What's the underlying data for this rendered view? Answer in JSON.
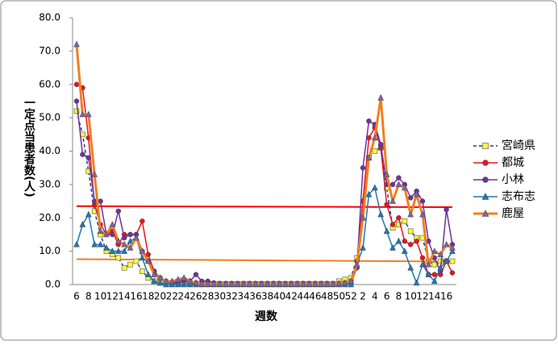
{
  "chart_data": {
    "type": "line",
    "x_label": "週数",
    "y_label": "一定点当患者数(人)",
    "categories": [
      "6",
      null,
      "8",
      null,
      "10",
      null,
      "12",
      null,
      "14",
      null,
      "16",
      null,
      "18",
      null,
      "20",
      null,
      "22",
      null,
      "24",
      null,
      "26",
      null,
      "28",
      null,
      "30",
      null,
      "32",
      null,
      "34",
      null,
      "36",
      null,
      "38",
      null,
      "40",
      null,
      "42",
      null,
      "44",
      null,
      "46",
      null,
      "48",
      null,
      "50",
      null,
      "52",
      null,
      "2",
      null,
      "4",
      null,
      "6",
      null,
      "8",
      null,
      "10",
      null,
      "12",
      null,
      "14",
      null,
      "16",
      null
    ],
    "series": [
      {
        "name": "宮崎県",
        "color": "#1f3f8f",
        "marker": "square",
        "marker_color": "#ffff33",
        "dash": true,
        "width": 1.5,
        "values": [
          52,
          45,
          34,
          22,
          15,
          10,
          9,
          8,
          5,
          6,
          7,
          4,
          2,
          1,
          0.5,
          0.3,
          0.2,
          0.2,
          0.2,
          0.2,
          0.2,
          0.2,
          0.2,
          0.2,
          0.2,
          0.2,
          0.2,
          0.2,
          0.2,
          0.2,
          0.2,
          0.2,
          0.2,
          0.2,
          0.2,
          0.2,
          0.2,
          0.2,
          0.2,
          0.2,
          0.2,
          0.2,
          0.2,
          0.2,
          1,
          1.5,
          2,
          8,
          24,
          38,
          40,
          41,
          29,
          17,
          18,
          19,
          16,
          14,
          14,
          7,
          6,
          7,
          7,
          7
        ]
      },
      {
        "name": "都城",
        "color": "#e8141c",
        "marker": "circle",
        "marker_color": "#e8141c",
        "width": 1.5,
        "values": [
          60,
          59,
          44,
          24,
          18,
          15,
          16,
          12,
          15,
          15,
          15,
          19,
          9,
          4,
          2,
          1,
          0.5,
          1,
          1.5,
          1,
          0.5,
          0.2,
          0.2,
          0.2,
          0.2,
          0.2,
          0.2,
          0.2,
          0.2,
          0.2,
          0.2,
          0.2,
          0.2,
          0.2,
          0.2,
          0.2,
          0.2,
          0.2,
          0.2,
          0.2,
          0.2,
          0.2,
          0.2,
          0.2,
          0.3,
          0.5,
          1,
          7,
          25,
          44,
          47,
          41,
          24,
          18,
          20,
          13,
          12,
          13,
          8,
          3,
          3,
          3,
          7,
          3.5
        ]
      },
      {
        "name": "小林",
        "color": "#7030a0",
        "marker": "circle",
        "marker_color": "#7030a0",
        "width": 1.5,
        "values": [
          55,
          39,
          38,
          25,
          25,
          15,
          15,
          22,
          14,
          15,
          15,
          10,
          7,
          4,
          2,
          1,
          0.5,
          0.5,
          1,
          1,
          3,
          1,
          1,
          0.5,
          0.3,
          0.3,
          0.3,
          0.3,
          0.3,
          0.3,
          0.3,
          0.3,
          0.3,
          0.3,
          0.3,
          0.3,
          0.3,
          0.3,
          0.3,
          0.3,
          0.3,
          0.3,
          0.3,
          0.3,
          0.3,
          0.3,
          0.5,
          5,
          35,
          49,
          48,
          42,
          30,
          30,
          32,
          30,
          26,
          28,
          25,
          13,
          8,
          4,
          22.5,
          12
        ]
      },
      {
        "name": "志布志",
        "color": "#1f77b4",
        "marker": "triangle",
        "marker_color": "#1f77b4",
        "width": 1.5,
        "values": [
          12,
          18,
          21,
          12,
          12,
          11,
          10,
          10,
          10,
          13,
          14,
          8,
          3,
          1,
          0.5,
          0,
          0,
          0,
          0,
          0,
          0,
          0,
          0,
          0,
          0,
          0,
          0,
          0,
          0,
          0,
          0,
          0,
          0,
          0,
          0,
          0,
          0,
          0,
          0,
          0,
          0,
          0,
          0,
          0,
          0,
          0,
          0,
          6,
          11,
          27,
          29,
          21,
          16,
          11,
          13,
          10,
          5,
          0.5,
          6,
          3,
          1,
          5,
          7,
          10
        ]
      },
      {
        "name": "鹿屋",
        "color": "#f08020",
        "marker": "triangle",
        "marker_color": "#8064a2",
        "width": 3,
        "values": [
          72,
          51,
          51,
          33,
          16,
          15,
          18,
          13,
          12,
          11,
          14,
          10,
          7,
          3,
          2,
          1,
          1,
          1.5,
          2,
          1,
          0.5,
          0.2,
          0.2,
          0.2,
          0.2,
          0.2,
          0.2,
          0.2,
          0.2,
          0.2,
          0.2,
          0.2,
          0.2,
          0.2,
          0.2,
          0.2,
          0.2,
          0.2,
          0.2,
          0.2,
          0.2,
          0.2,
          0.2,
          0.2,
          0.3,
          0.5,
          1,
          6,
          20,
          38,
          44,
          56,
          33,
          25,
          30,
          29,
          21,
          27,
          21,
          6,
          10,
          9,
          12,
          11
        ]
      }
    ],
    "reference_lines": [
      {
        "color": "#ff0000",
        "from": 23.5,
        "to": 23.2
      },
      {
        "color": "#f08020",
        "from": 7.6,
        "to": 6.9
      }
    ],
    "ylim": [
      0,
      80
    ],
    "yticks": [
      {
        "value": 0,
        "label": "0.0"
      },
      {
        "value": 10,
        "label": "10.0"
      },
      {
        "value": 20,
        "label": "20.0"
      },
      {
        "value": 30,
        "label": "30.0"
      },
      {
        "value": 40,
        "label": "40.0"
      },
      {
        "value": 50,
        "label": "50.0"
      },
      {
        "value": 60,
        "label": "60.0"
      },
      {
        "value": 70,
        "label": "70.0"
      },
      {
        "value": 80,
        "label": "80.0"
      }
    ],
    "grid": false,
    "legend": "right"
  }
}
